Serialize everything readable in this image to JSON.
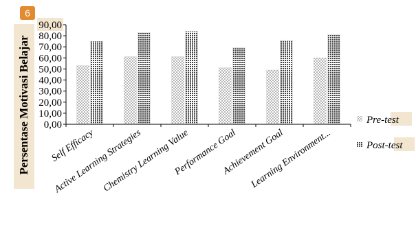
{
  "badge": {
    "number": "6"
  },
  "chart_data": {
    "type": "bar",
    "ylabel": "Persentase Motivasi Belajar",
    "xlabel": "",
    "ylim": [
      0,
      90
    ],
    "yticks": [
      "0,00",
      "10,00",
      "20,00",
      "30,00",
      "40,00",
      "50,00",
      "60,00",
      "70,00",
      "80,00",
      "90,00"
    ],
    "categories": [
      "Self Efficacy",
      "Active Learning Strategies",
      "Chemistry Learning Value",
      "Performance Goal",
      "Achievement Goal",
      "Learning Environment..."
    ],
    "series": [
      {
        "name": "Pre-test",
        "values": [
          53,
          61,
          61,
          51,
          49,
          60
        ],
        "pattern": "dots"
      },
      {
        "name": "Post-test",
        "values": [
          75,
          83,
          84,
          69,
          76,
          81
        ],
        "pattern": "grid"
      }
    ],
    "legend": {
      "placement": "right",
      "items": [
        {
          "prefix": "Pre-",
          "suffix": "test"
        },
        {
          "prefix": "Post-",
          "suffix": "test"
        }
      ]
    },
    "grid": false
  }
}
